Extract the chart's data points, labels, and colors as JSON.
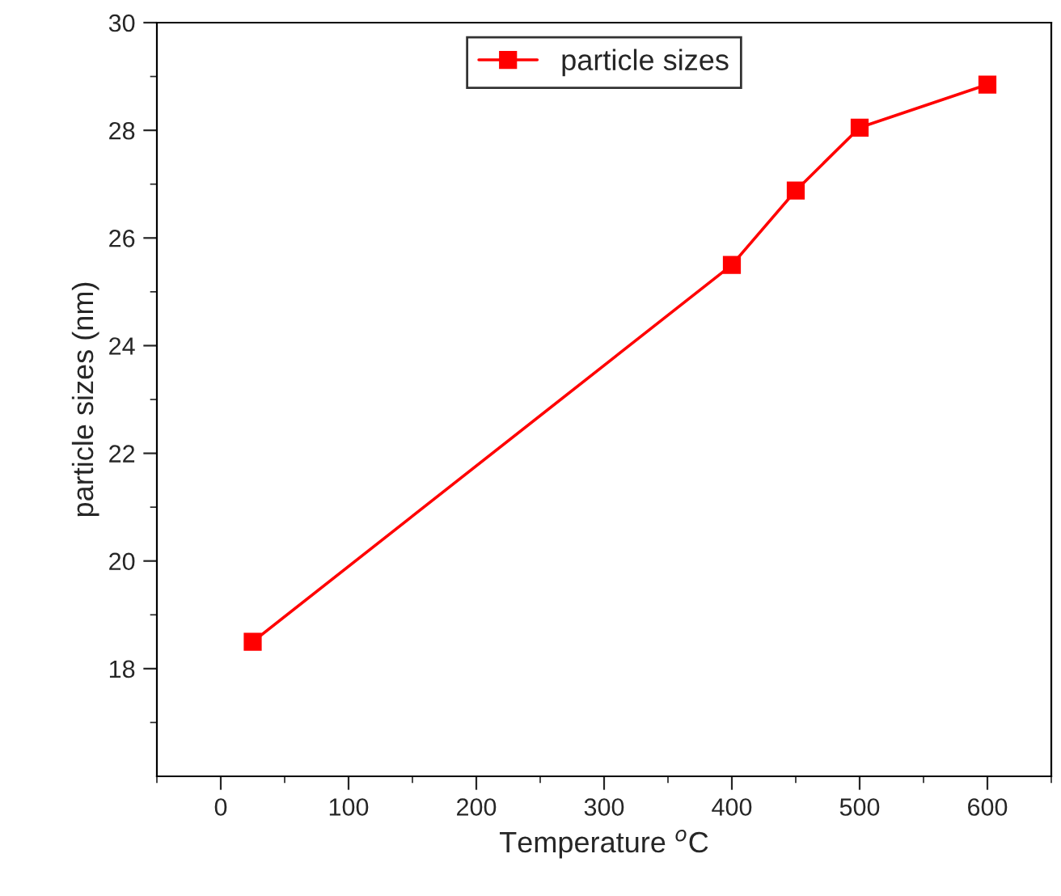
{
  "chart_data": {
    "type": "line",
    "xlabel": "Temperature $^{o}$C",
    "ylabel": "particle sizes (nm)",
    "x": [
      25,
      400,
      450,
      500,
      600
    ],
    "series": [
      {
        "name": "particle sizes",
        "color": "#ff0000",
        "values": [
          18.5,
          25.5,
          26.88,
          28.05,
          28.85
        ]
      }
    ],
    "xlim": [
      -50,
      650
    ],
    "xticks": [
      0,
      100,
      200,
      300,
      400,
      500,
      600
    ],
    "ylim": [
      16,
      30
    ],
    "yticks": [
      18,
      20,
      22,
      24,
      26,
      28,
      30
    ],
    "marker": "square",
    "line_style": "solid",
    "legend": "top",
    "grid": false
  }
}
